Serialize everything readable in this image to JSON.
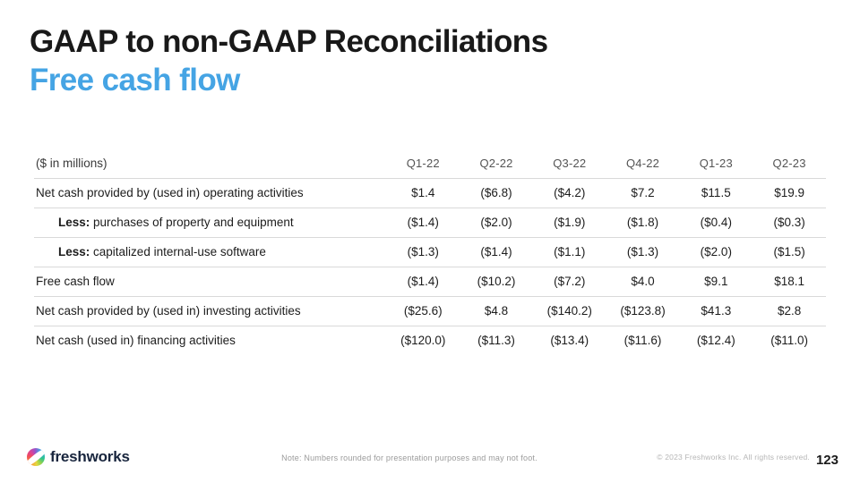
{
  "header": {
    "title": "GAAP to non-GAAP Reconciliations",
    "subtitle": "Free cash flow",
    "subtitle_color": "#45a4e4",
    "title_color": "#191919"
  },
  "table": {
    "unit_label": "($ in millions)",
    "columns": [
      "Q1-22",
      "Q2-22",
      "Q3-22",
      "Q4-22",
      "Q1-23",
      "Q2-23"
    ],
    "rows": [
      {
        "bold_prefix": "",
        "label": "Net cash provided by (used in) operating activities",
        "indent": false,
        "values": [
          "$1.4",
          "($6.8)",
          "($4.2)",
          "$7.2",
          "$11.5",
          "$19.9"
        ]
      },
      {
        "bold_prefix": "Less:",
        "label": " purchases of property and equipment",
        "indent": true,
        "values": [
          "($1.4)",
          "($2.0)",
          "($1.9)",
          "($1.8)",
          "($0.4)",
          "($0.3)"
        ]
      },
      {
        "bold_prefix": "Less:",
        "label": " capitalized internal-use software",
        "indent": true,
        "values": [
          "($1.3)",
          "($1.4)",
          "($1.1)",
          "($1.3)",
          "($2.0)",
          "($1.5)"
        ]
      },
      {
        "bold_prefix": "",
        "label": "Free cash flow",
        "indent": false,
        "values": [
          "($1.4)",
          "($10.2)",
          "($7.2)",
          "$4.0",
          "$9.1",
          "$18.1"
        ]
      },
      {
        "bold_prefix": "",
        "label": "Net cash provided by (used in) investing activities",
        "indent": false,
        "values": [
          "($25.6)",
          "$4.8",
          "($140.2)",
          "($123.8)",
          "$41.3",
          "$2.8"
        ]
      },
      {
        "bold_prefix": "",
        "label": "Net cash (used in) financing activities",
        "indent": false,
        "values": [
          "($120.0)",
          "($11.3)",
          "($13.4)",
          "($11.6)",
          "($12.4)",
          "($11.0)"
        ]
      }
    ]
  },
  "footer": {
    "logo_text": "freshworks",
    "logo_icon": "freshworks-swirl-icon",
    "note": "Note: Numbers rounded for presentation purposes and may not foot.",
    "copyright": "© 2023 Freshworks Inc. All rights reserved.",
    "page_number": "123"
  }
}
